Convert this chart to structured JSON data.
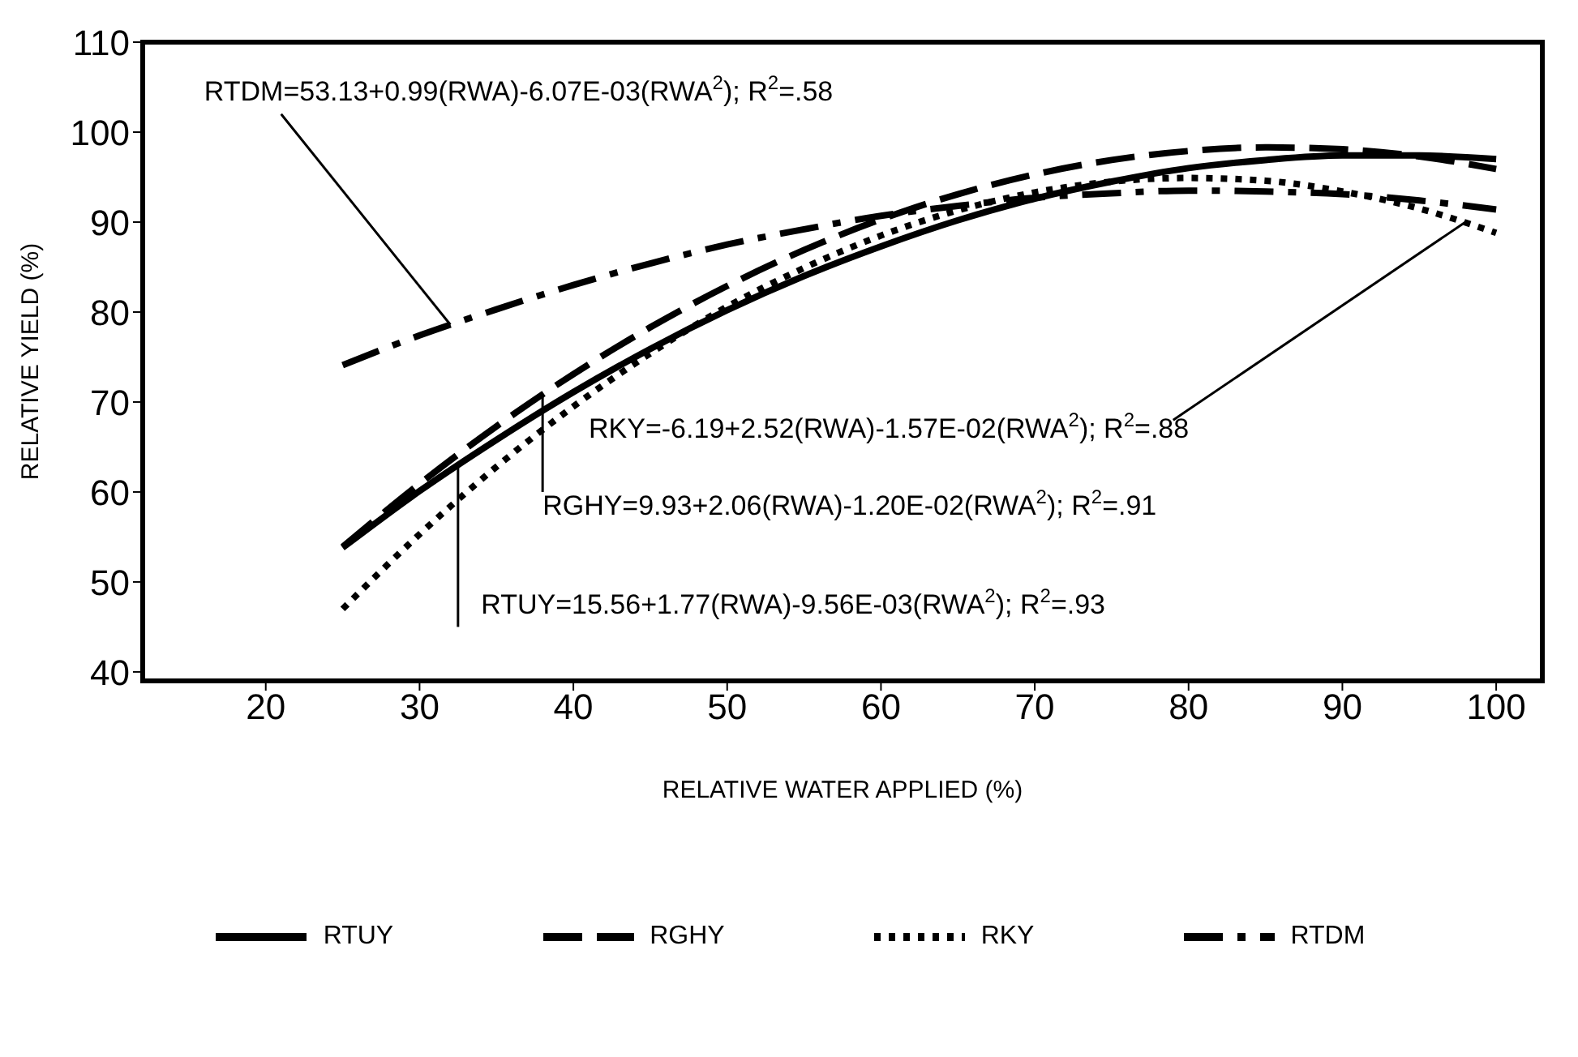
{
  "chart_data": {
    "type": "line",
    "xlabel": "RELATIVE WATER APPLIED (%)",
    "ylabel": "RELATIVE YIELD (%)",
    "x": [
      25,
      30,
      35,
      40,
      45,
      50,
      55,
      60,
      65,
      70,
      75,
      80,
      85,
      90,
      95,
      100
    ],
    "series": [
      {
        "name": "RTUY",
        "color": "#000000",
        "line_style": "solid",
        "values": [
          53.8,
          60.1,
          65.8,
          71.1,
          75.9,
          80.2,
          84.0,
          87.3,
          90.2,
          92.6,
          94.5,
          96.0,
          96.9,
          97.4,
          97.4,
          97.0
        ]
      },
      {
        "name": "RGHY",
        "color": "#000000",
        "line_style": "dashed",
        "values": [
          53.9,
          60.9,
          67.3,
          73.1,
          78.3,
          82.9,
          86.9,
          90.3,
          93.1,
          95.3,
          96.9,
          97.9,
          98.3,
          98.1,
          97.3,
          95.9
        ]
      },
      {
        "name": "RKY",
        "color": "#000000",
        "line_style": "dotted",
        "values": [
          47.0,
          55.3,
          62.8,
          69.5,
          75.4,
          80.6,
          84.9,
          88.5,
          91.3,
          93.3,
          94.5,
          94.9,
          94.6,
          93.4,
          91.5,
          88.8
        ]
      },
      {
        "name": "RTDM",
        "color": "#000000",
        "line_style": "dashdot",
        "values": [
          74.1,
          77.4,
          80.3,
          83.0,
          85.4,
          87.5,
          89.2,
          90.7,
          91.8,
          92.7,
          93.2,
          93.5,
          93.4,
          93.1,
          92.4,
          91.4
        ]
      }
    ],
    "xlim": [
      12,
      103
    ],
    "xticks": [
      20,
      30,
      40,
      50,
      60,
      70,
      80,
      90,
      100
    ],
    "ylim": [
      39,
      110
    ],
    "yticks": [
      40,
      50,
      60,
      70,
      80,
      90,
      100,
      110
    ],
    "grid": false,
    "legend": "bottom",
    "marker": "none",
    "annotations": [
      {
        "text": "RTDM=53.13+0.99(RWA)-6.07E-03(RWA$^{2}$); R$^{2}$=.58",
        "x": 32,
        "y": 78.6
      },
      {
        "text": "RKY=-6.19+2.52(RWA)-1.57E-02(RWA$^{2}$); R$^{2}$=.88",
        "x": 98,
        "y": 90
      },
      {
        "text": "RGHY=9.93+2.06(RWA)-1.20E-02(RWA$^{2}$); R$^{2}$=.91",
        "x": 38,
        "y": 70.9
      },
      {
        "text": "RTUY=15.56+1.77(RWA)-9.56E-03(RWA$^{2}$); R$^{2}$=.93",
        "x": 32.5,
        "y": 63
      }
    ]
  }
}
